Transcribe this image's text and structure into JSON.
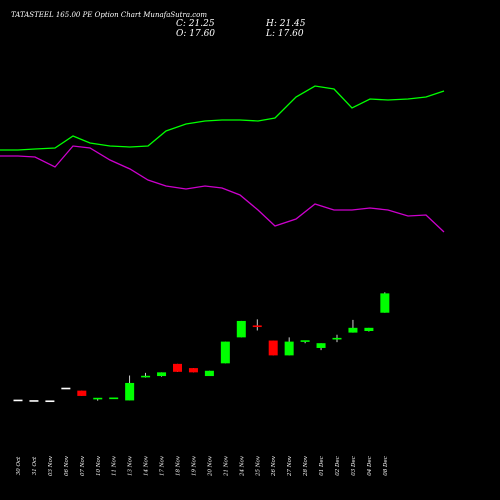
{
  "header": {
    "title": "TATASTEEL 165.00 PE Option Chart MunafaSutra.com",
    "close": "C: 21.25",
    "high": "H: 21.45",
    "open": "O: 17.60",
    "low": "L: 17.60"
  },
  "colors": {
    "background": "#000000",
    "up": "#00ff00",
    "down": "#ff0000",
    "upper_line": "#00ff00",
    "lower_line": "#cc00cc",
    "wick": "#ffffff"
  },
  "chart_data": {
    "type": "candlestick",
    "grid": false,
    "dates": [
      "30 Oct",
      "31 Oct",
      "03 Nov",
      "06 Nov",
      "07 Nov",
      "10 Nov",
      "11 Nov",
      "13 Nov",
      "14 Nov",
      "17 Nov",
      "18 Nov",
      "19 Nov",
      "20 Nov",
      "21 Nov",
      "24 Nov",
      "25 Nov",
      "26 Nov",
      "27 Nov",
      "28 Nov",
      "01 Dec",
      "02 Dec",
      "03 Dec",
      "04 Dec",
      "08 Dec"
    ],
    "candles": [
      {
        "o": 1.05,
        "h": 1.05,
        "l": 1.05,
        "c": 1.05
      },
      {
        "o": 0.95,
        "h": 0.95,
        "l": 0.95,
        "c": 0.95
      },
      {
        "o": 0.9,
        "h": 0.9,
        "l": 0.9,
        "c": 0.9
      },
      {
        "o": 3.3,
        "h": 3.3,
        "l": 3.3,
        "c": 3.3
      },
      {
        "o": 2.9,
        "h": 2.9,
        "l": 1.9,
        "c": 1.9
      },
      {
        "o": 1.2,
        "h": 1.5,
        "l": 1.0,
        "c": 1.4
      },
      {
        "o": 1.35,
        "h": 1.45,
        "l": 1.35,
        "c": 1.45
      },
      {
        "o": 1.05,
        "h": 5.75,
        "l": 1.05,
        "c": 4.35
      },
      {
        "o": 5.55,
        "h": 6.25,
        "l": 5.35,
        "c": 5.55
      },
      {
        "o": 5.65,
        "h": 6.35,
        "l": 5.55,
        "c": 6.35
      },
      {
        "o": 7.95,
        "h": 7.95,
        "l": 6.45,
        "c": 6.45
      },
      {
        "o": 7.15,
        "h": 7.15,
        "l": 6.35,
        "c": 6.35
      },
      {
        "o": 5.65,
        "h": 6.65,
        "l": 5.65,
        "c": 6.65
      },
      {
        "o": 8.05,
        "h": 12.15,
        "l": 8.05,
        "c": 12.15
      },
      {
        "o": 12.95,
        "h": 16.05,
        "l": 12.95,
        "c": 16.05
      },
      {
        "o": 15.05,
        "h": 16.35,
        "l": 14.25,
        "c": 14.95
      },
      {
        "o": 12.35,
        "h": 12.35,
        "l": 9.55,
        "c": 9.55
      },
      {
        "o": 9.55,
        "h": 12.95,
        "l": 9.55,
        "c": 12.15
      },
      {
        "o": 12.05,
        "h": 12.25,
        "l": 11.85,
        "c": 12.25
      },
      {
        "o": 10.95,
        "h": 11.85,
        "l": 10.55,
        "c": 11.85
      },
      {
        "o": 12.55,
        "h": 13.45,
        "l": 12.05,
        "c": 12.85
      },
      {
        "o": 13.85,
        "h": 16.25,
        "l": 13.85,
        "c": 14.75
      },
      {
        "o": 14.15,
        "h": 14.75,
        "l": 14.05,
        "c": 14.75
      },
      {
        "o": 17.6,
        "h": 21.45,
        "l": 17.6,
        "c": 21.25
      }
    ],
    "upper_band": [
      150,
      150,
      149,
      148,
      136,
      143,
      146,
      147,
      146,
      131,
      124,
      121,
      120,
      120,
      121,
      118,
      97,
      86,
      89,
      108,
      99,
      100,
      99,
      97,
      91
    ],
    "lower_band": [
      156,
      156,
      157,
      167,
      146,
      148,
      160,
      169,
      180,
      186,
      189,
      186,
      188,
      195,
      210,
      226,
      219,
      204,
      210,
      210,
      208,
      210,
      216,
      215,
      232
    ],
    "band_scale": "screen_from_top_reference"
  }
}
